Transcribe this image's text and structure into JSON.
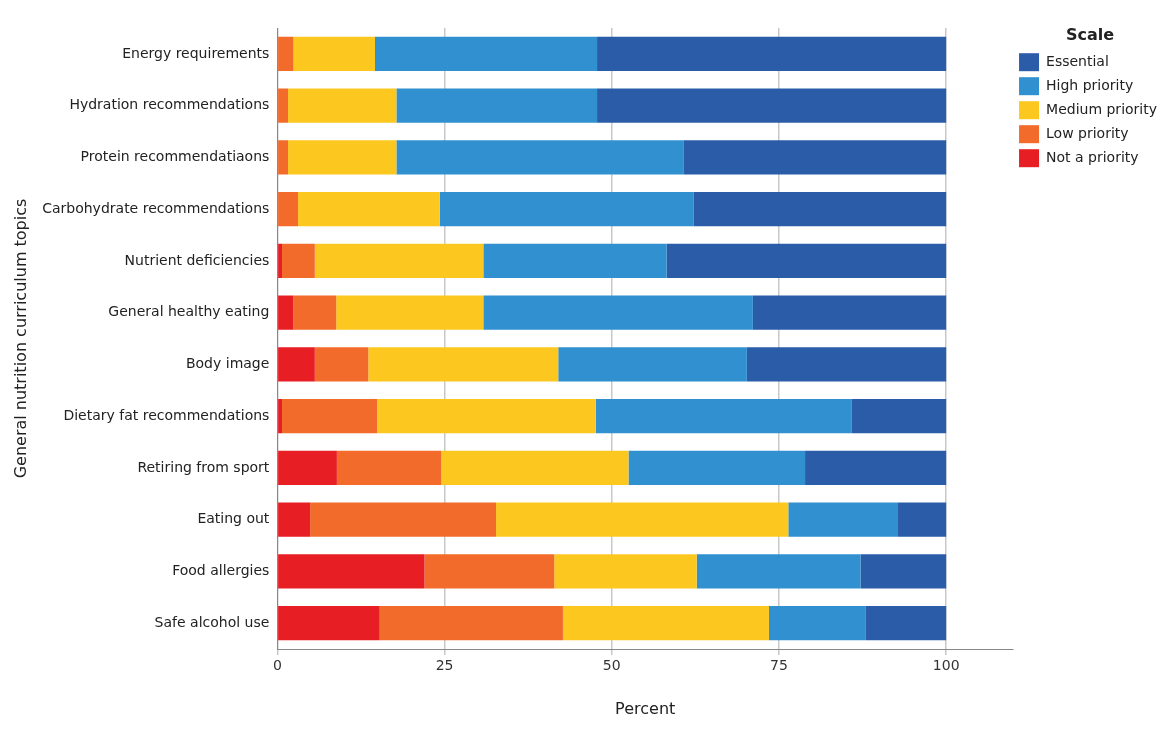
{
  "chart_data": {
    "type": "bar",
    "orientation": "horizontal",
    "stacked": true,
    "xlabel": "Percent",
    "ylabel": "General nutrition curriculum topics",
    "legend_title": "Scale",
    "legend": "top right",
    "grid": "x",
    "categories": [
      "Energy requirements",
      "Hydration recommendations",
      "Protein recommendatiaons",
      "Carbohydrate recommendations",
      "Nutrient deficiencies",
      "General healthy eating",
      "Body image",
      "Dietary fat recommendations",
      "Retiring from sport",
      "Eating out",
      "Food allergies",
      "Safe alcohol use"
    ],
    "xlim": [
      0,
      110
    ],
    "xticks": [
      0,
      25,
      50,
      75,
      100
    ],
    "series": [
      {
        "name": "Not a priority",
        "color": "#e81e25",
        "values": [
          0,
          0,
          0,
          0,
          0.7,
          2.4,
          5.6,
          0.7,
          8.9,
          4.9,
          22,
          15.3
        ]
      },
      {
        "name": "Low priority",
        "color": "#f26b2a",
        "values": [
          2.4,
          1.6,
          1.6,
          3.1,
          4.9,
          6.4,
          8,
          14.2,
          15.6,
          27.8,
          19.4,
          27.4
        ]
      },
      {
        "name": "Medium priority",
        "color": "#fcc820",
        "values": [
          12.2,
          16.2,
          16.2,
          21.2,
          25.2,
          22,
          28.4,
          32.7,
          28,
          43.7,
          21.3,
          30.8
        ]
      },
      {
        "name": "High priority",
        "color": "#3090d0",
        "values": [
          33.2,
          30,
          42.9,
          37.9,
          27.4,
          40.3,
          28.2,
          38.3,
          26.4,
          16.4,
          24.5,
          14.5
        ]
      },
      {
        "name": "Essential",
        "color": "#2b5ca8",
        "values": [
          52.2,
          52.2,
          39.3,
          37.8,
          41.8,
          28.9,
          29.8,
          14.1,
          21.1,
          7.2,
          12.8,
          12
        ]
      }
    ]
  }
}
